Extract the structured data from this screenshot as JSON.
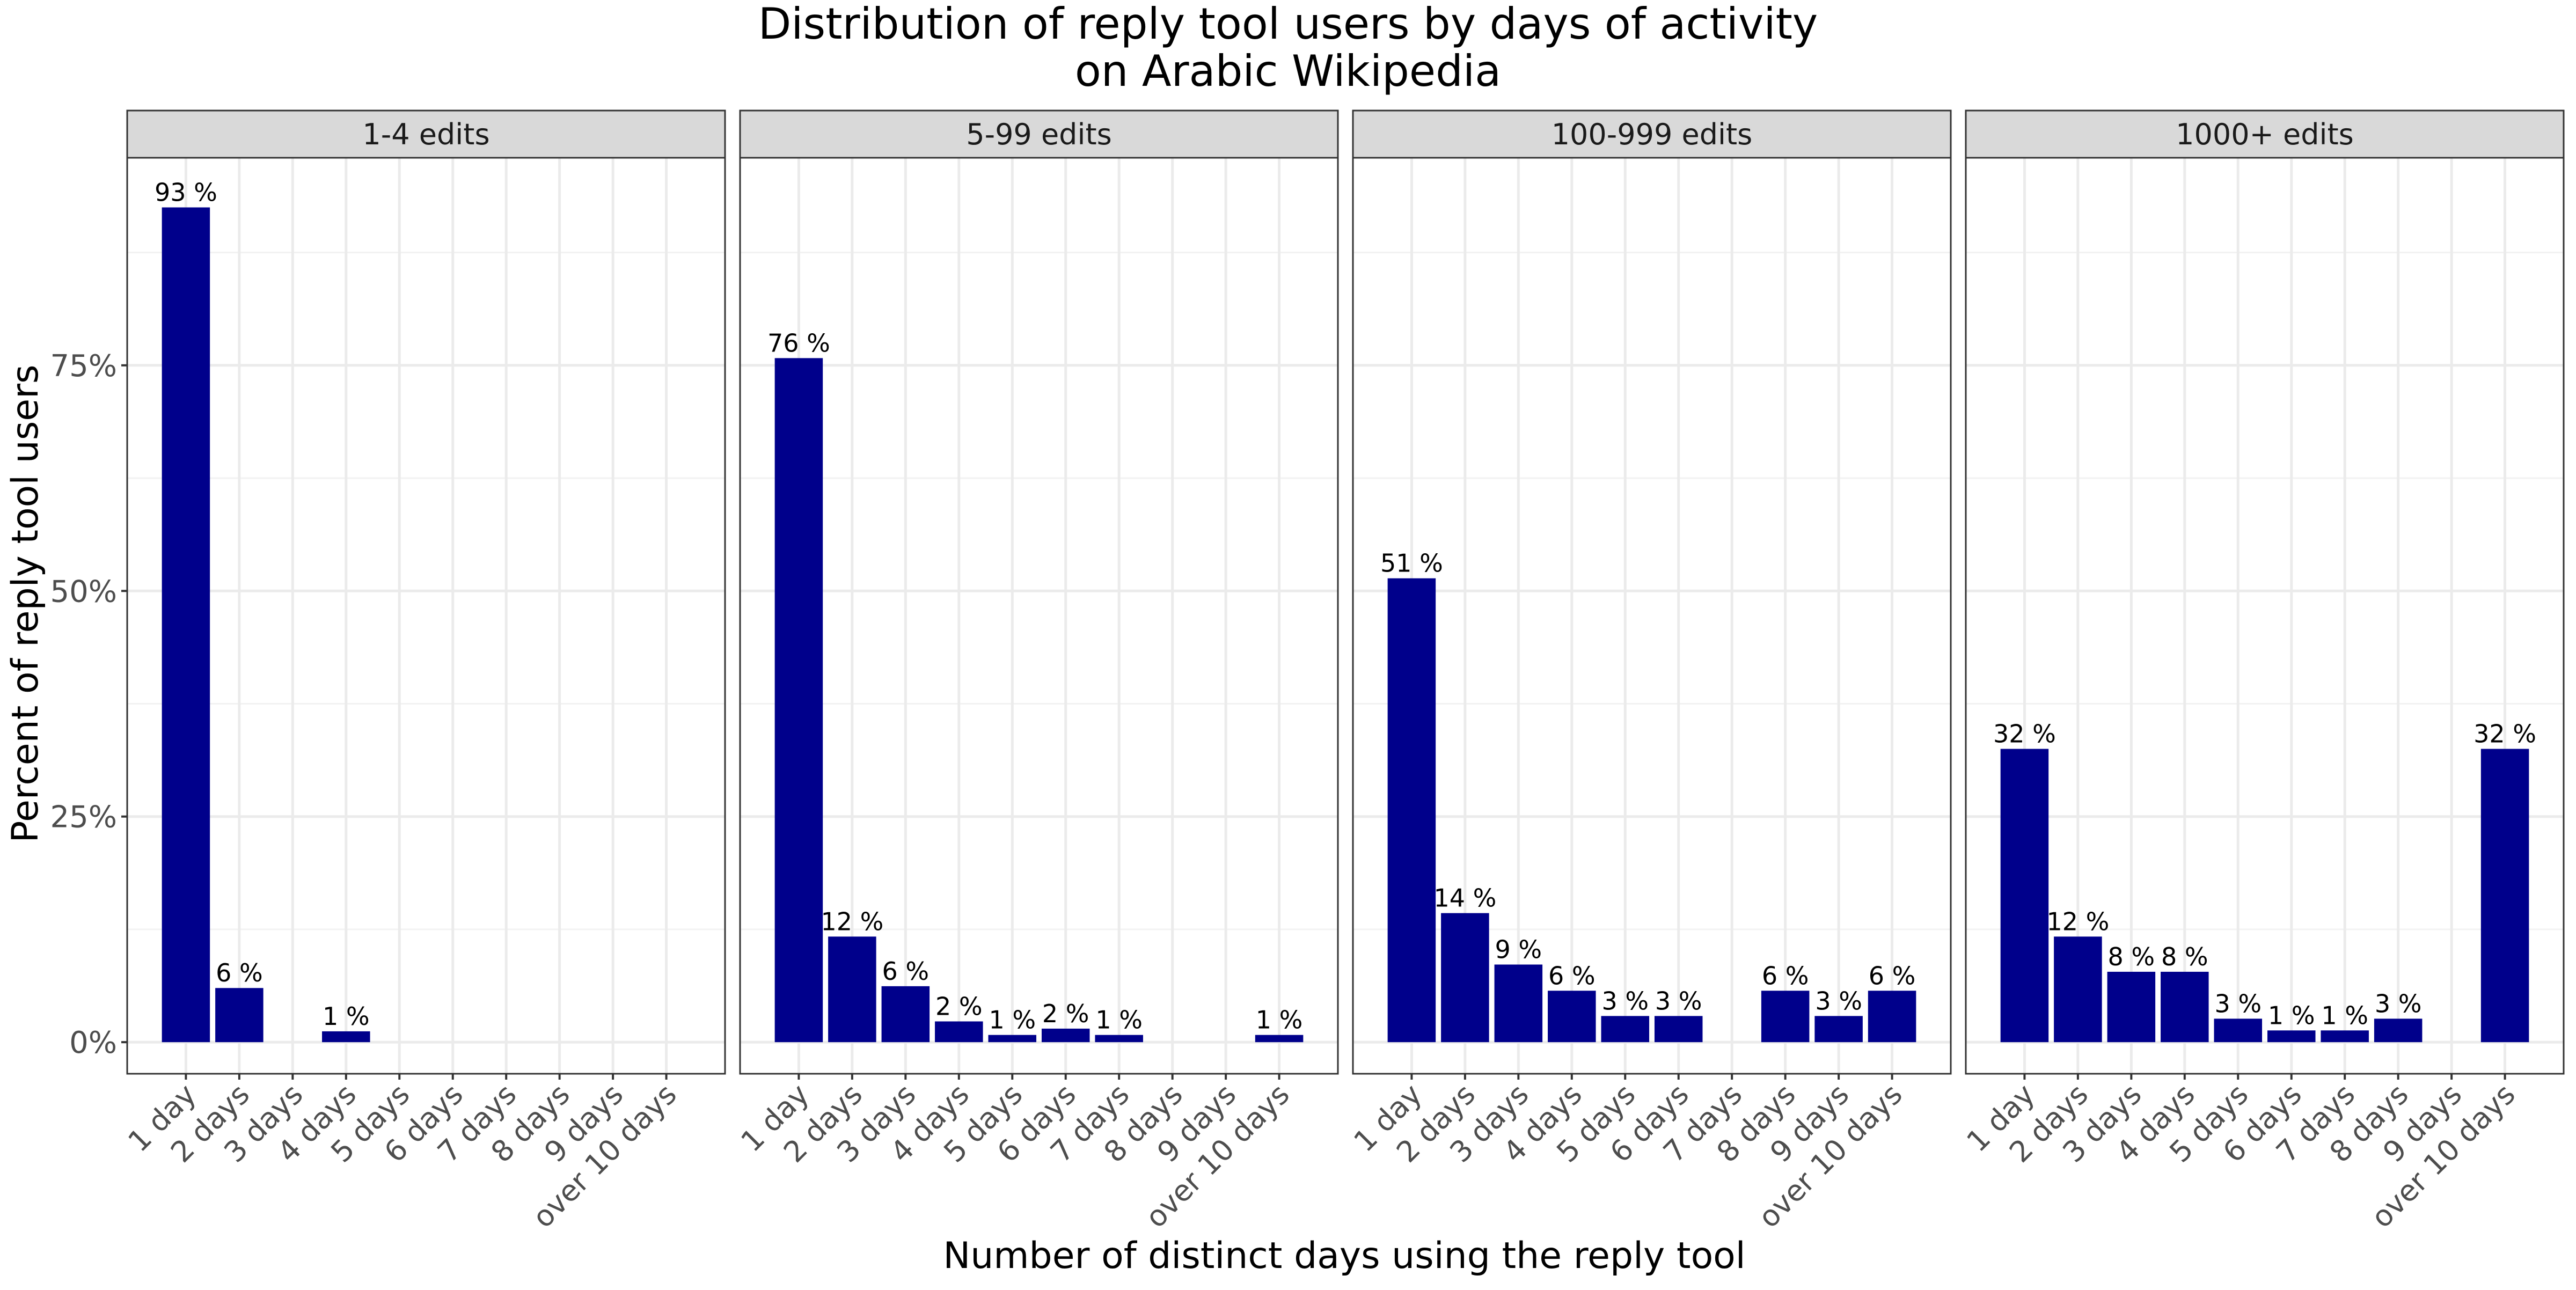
{
  "chart_data": {
    "type": "bar",
    "title_line1": "Distribution of reply tool users by days of activity",
    "title_line2": "on Arabic Wikipedia",
    "xlabel": "Number of distinct days using the reply tool",
    "ylabel": "Percent of reply tool users",
    "ylim": [
      -3.5,
      98
    ],
    "y_ticks": [
      0,
      25,
      50,
      75
    ],
    "y_tick_labels": [
      "0%",
      "25%",
      "50%",
      "75%"
    ],
    "grid": true,
    "bar_color": "#00008B",
    "categories": [
      "1 day",
      "2 days",
      "3 days",
      "4 days",
      "5 days",
      "6 days",
      "7 days",
      "8 days",
      "9 days",
      "over 10 days"
    ],
    "panels": [
      {
        "name": "1-4 edits",
        "values": [
          92.5,
          6.0,
          null,
          1.2,
          null,
          null,
          null,
          null,
          null,
          null
        ],
        "labels": [
          "93 %",
          "6 %",
          "",
          "1 %",
          "",
          "",
          "",
          "",
          "",
          ""
        ]
      },
      {
        "name": "5-99 edits",
        "values": [
          75.8,
          11.7,
          6.2,
          2.3,
          0.8,
          1.5,
          0.8,
          null,
          null,
          0.8
        ],
        "labels": [
          "76 %",
          "12 %",
          "6 %",
          "2 %",
          "1 %",
          "2 %",
          "1 %",
          "",
          "",
          "1 %"
        ]
      },
      {
        "name": "100-999 edits",
        "values": [
          51.4,
          14.3,
          8.6,
          5.7,
          2.9,
          2.9,
          null,
          5.7,
          2.9,
          5.7
        ],
        "labels": [
          "51 %",
          "14 %",
          "9 %",
          "6 %",
          "3 %",
          "3 %",
          "",
          "6 %",
          "3 %",
          "6 %"
        ]
      },
      {
        "name": "1000+ edits",
        "values": [
          32.5,
          11.7,
          7.8,
          7.8,
          2.6,
          1.3,
          1.3,
          2.6,
          null,
          32.5
        ],
        "labels": [
          "32 %",
          "12 %",
          "8 %",
          "8 %",
          "3 %",
          "1 %",
          "1 %",
          "3 %",
          "",
          "32 %"
        ]
      }
    ]
  }
}
